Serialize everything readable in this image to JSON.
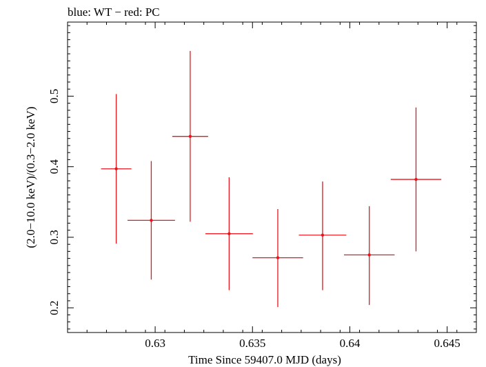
{
  "chart_data": {
    "type": "scatter",
    "title": "blue: WT − red: PC",
    "xlabel": "Time Since 59407.0 MJD (days)",
    "ylabel": "(2.0−10.0 keV)/(0.3−2.0 keV)",
    "xlim": [
      0.6255,
      0.6465
    ],
    "ylim": [
      0.165,
      0.605
    ],
    "xticks": [
      0.63,
      0.635,
      0.64,
      0.645
    ],
    "xtick_labels": [
      "0.63",
      "0.635",
      "0.64",
      "0.645"
    ],
    "yticks": [
      0.2,
      0.3,
      0.4,
      0.5
    ],
    "ytick_labels": [
      "0.2",
      "0.3",
      "0.4",
      "0.5"
    ],
    "grid": false,
    "series": [
      {
        "color": "#e8141c",
        "points": [
          {
            "x": 0.628,
            "y": 0.397,
            "xerr": 0.00078,
            "ylow": 0.291,
            "yhigh": 0.503
          },
          {
            "x": 0.6298,
            "y": 0.324,
            "xerr": 0.00122,
            "ylow": 0.24,
            "yhigh": 0.408
          },
          {
            "x": 0.6318,
            "y": 0.443,
            "xerr": 0.00092,
            "ylow": 0.322,
            "yhigh": 0.564
          },
          {
            "x": 0.6338,
            "y": 0.305,
            "xerr": 0.00122,
            "ylow": 0.225,
            "yhigh": 0.385
          },
          {
            "x": 0.6363,
            "y": 0.271,
            "xerr": 0.0013,
            "ylow": 0.201,
            "yhigh": 0.34
          },
          {
            "x": 0.6386,
            "y": 0.303,
            "xerr": 0.00122,
            "ylow": 0.225,
            "yhigh": 0.379
          },
          {
            "x": 0.641,
            "y": 0.275,
            "xerr": 0.0013,
            "ylow": 0.204,
            "yhigh": 0.344
          },
          {
            "x": 0.6434,
            "y": 0.382,
            "xerr": 0.0013,
            "ylow": 0.28,
            "yhigh": 0.484
          }
        ]
      }
    ]
  }
}
